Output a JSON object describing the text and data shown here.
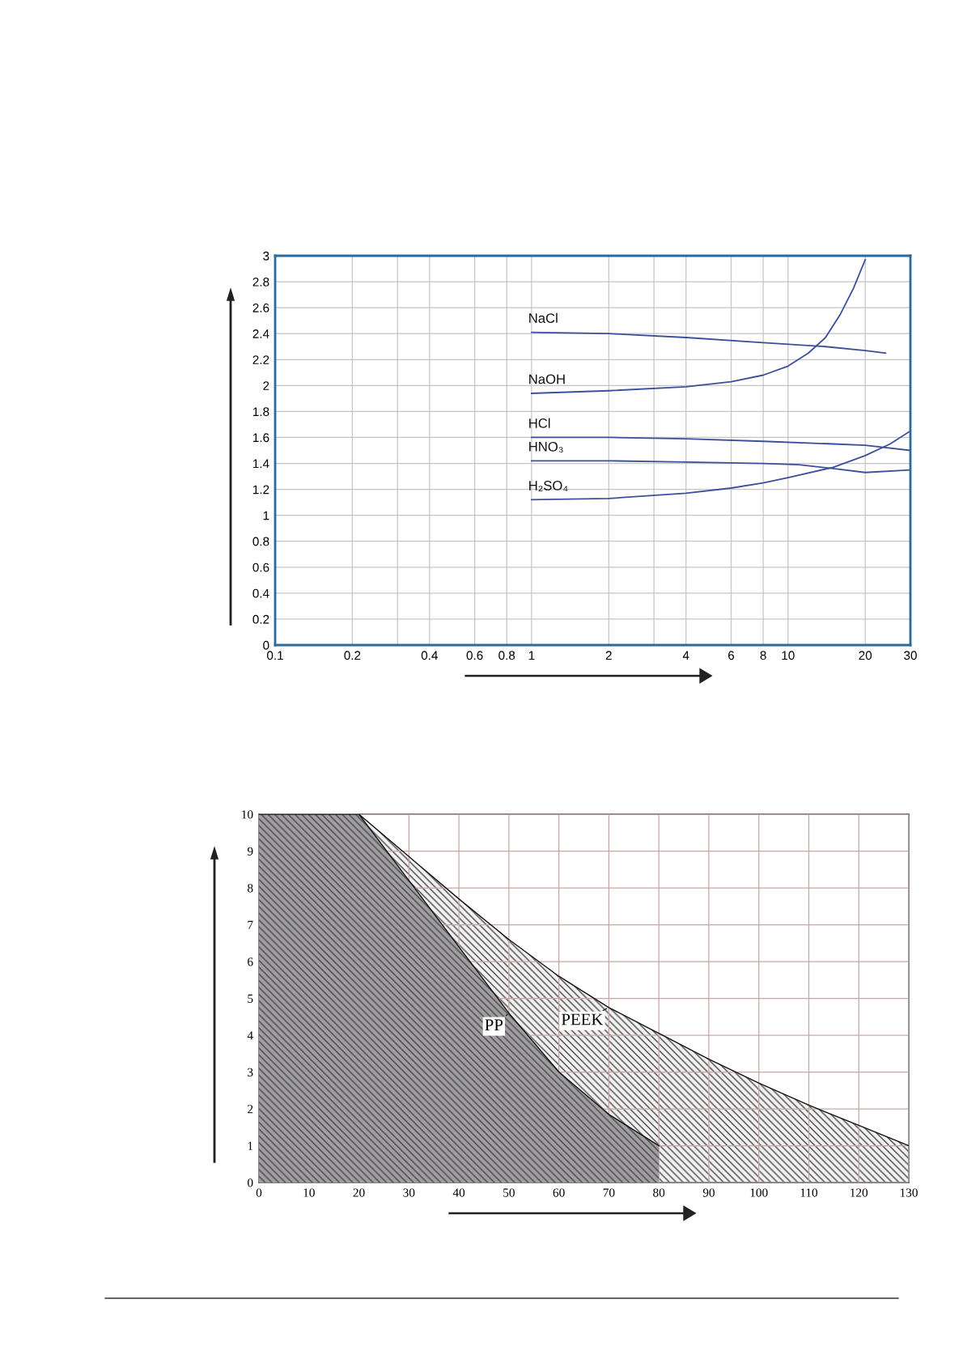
{
  "chart_data": [
    {
      "type": "line",
      "log": "x",
      "xlim": [
        0.1,
        30
      ],
      "ylim": [
        0,
        3
      ],
      "xticks": [
        0.1,
        0.2,
        {
          "value": 0.3,
          "label": null
        },
        0.4,
        0.6,
        0.8,
        1,
        2,
        {
          "value": 3,
          "label": null
        },
        4,
        6,
        8,
        10,
        20,
        30
      ],
      "yticks": [
        0,
        0.2,
        0.4,
        0.6,
        0.8,
        1,
        1.2,
        1.4,
        1.6,
        1.8,
        2,
        2.2,
        2.4,
        2.6,
        2.8,
        3
      ],
      "grid": true,
      "legend": false,
      "marker": "none",
      "line_style": "solid",
      "series": [
        {
          "name": "NaCl",
          "color": "#3b4f9a",
          "x": [
            1,
            2,
            4,
            8,
            14,
            20,
            24
          ],
          "values": [
            2.41,
            2.4,
            2.37,
            2.33,
            2.3,
            2.27,
            2.25
          ]
        },
        {
          "name": "NaOH",
          "color": "#3b4f9a",
          "x": [
            1,
            2,
            4,
            6,
            8,
            10,
            12,
            14,
            16,
            18,
            20
          ],
          "values": [
            1.94,
            1.96,
            1.99,
            2.03,
            2.08,
            2.15,
            2.25,
            2.37,
            2.55,
            2.75,
            2.97
          ]
        },
        {
          "name": "HCl",
          "color": "#3b4f9a",
          "x": [
            1,
            2,
            4,
            8,
            15,
            20,
            30
          ],
          "values": [
            1.6,
            1.6,
            1.59,
            1.57,
            1.55,
            1.54,
            1.5
          ]
        },
        {
          "name": "HNO₃",
          "color": "#3b4f9a",
          "x": [
            1,
            2,
            4,
            8,
            11,
            15,
            20,
            30
          ],
          "values": [
            1.42,
            1.42,
            1.41,
            1.4,
            1.39,
            1.36,
            1.33,
            1.35
          ]
        },
        {
          "name": "H₂SO₄",
          "color": "#3b4f9a",
          "x": [
            1,
            2,
            4,
            6,
            8,
            10,
            15,
            20,
            25,
            30
          ],
          "values": [
            1.12,
            1.13,
            1.17,
            1.21,
            1.25,
            1.29,
            1.37,
            1.46,
            1.55,
            1.65
          ]
        }
      ]
    },
    {
      "type": "area",
      "xlim": [
        0,
        130
      ],
      "ylim": [
        0,
        10
      ],
      "xticks": [
        0,
        10,
        20,
        30,
        40,
        50,
        60,
        70,
        80,
        90,
        100,
        110,
        120,
        130
      ],
      "yticks": [
        0,
        1,
        2,
        3,
        4,
        5,
        6,
        7,
        8,
        9,
        10
      ],
      "grid": true,
      "annotations": [
        {
          "text": "PP",
          "x": 50,
          "y": 4.6
        },
        {
          "text": "PEEK",
          "x": 70,
          "y": 4.75
        }
      ],
      "series": [
        {
          "color": "#f2f2f2",
          "x": [
            0,
            20,
            30,
            40,
            50,
            60,
            70,
            80,
            90,
            100,
            110,
            120,
            130
          ],
          "values": [
            10,
            10,
            8.85,
            7.7,
            6.6,
            5.6,
            4.75,
            4.05,
            3.35,
            2.7,
            2.1,
            1.55,
            1.0
          ]
        },
        {
          "color": "#a09ea2",
          "x": [
            0,
            20,
            30,
            40,
            50,
            60,
            70,
            80
          ],
          "values": [
            10,
            10,
            8.2,
            6.4,
            4.6,
            3.0,
            1.85,
            1.0
          ]
        }
      ]
    }
  ]
}
